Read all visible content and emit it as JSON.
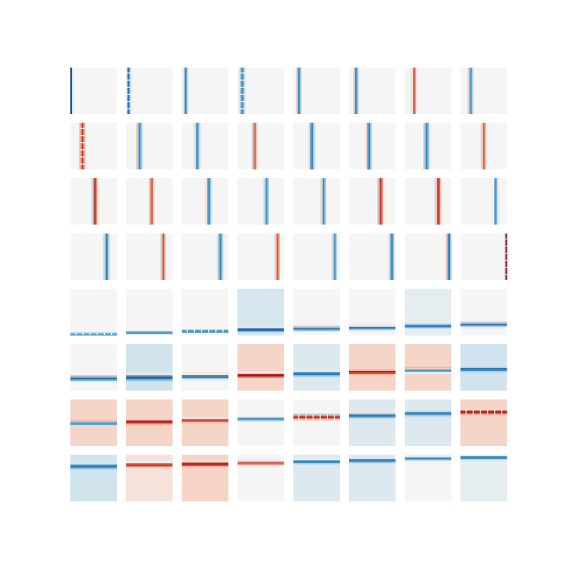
{
  "chart_data": {
    "type": "heatmap",
    "layout": {
      "rows": 8,
      "cols": 8
    },
    "colormap": "RdBu_r",
    "colors": {
      "neutral": "#f5f5f5",
      "negative_strong": "#08519c",
      "negative": "#4393c3",
      "positive": "#d6604d",
      "positive_strong": "#b2182b"
    },
    "panels": [
      {
        "orientation": "vertical",
        "pos": 0.02,
        "sign": -1,
        "amp": 1.0,
        "width": 0.025,
        "bg": 0.0,
        "striped": false
      },
      {
        "orientation": "vertical",
        "pos": 0.05,
        "sign": -1,
        "amp": 0.7,
        "width": 0.05,
        "bg": 0.0,
        "striped": true
      },
      {
        "orientation": "vertical",
        "pos": 0.08,
        "sign": -1,
        "amp": 0.6,
        "width": 0.05,
        "bg": 0.0,
        "striped": false
      },
      {
        "orientation": "vertical",
        "pos": 0.1,
        "sign": -1,
        "amp": 0.55,
        "width": 0.06,
        "bg": 0.0,
        "striped": true
      },
      {
        "orientation": "vertical",
        "pos": 0.12,
        "sign": -1,
        "amp": 0.6,
        "width": 0.05,
        "bg": 0.0,
        "striped": false
      },
      {
        "orientation": "vertical",
        "pos": 0.15,
        "sign": -1,
        "amp": 0.6,
        "width": 0.05,
        "bg": 0.0,
        "striped": false
      },
      {
        "orientation": "vertical",
        "pos": 0.2,
        "sign": 1,
        "amp": 0.55,
        "width": 0.05,
        "bg": 0.0,
        "striped": false
      },
      {
        "orientation": "vertical",
        "pos": 0.22,
        "sign": -1,
        "amp": 0.55,
        "width": 0.05,
        "bg": 0.0,
        "striped": false
      },
      {
        "orientation": "vertical",
        "pos": 0.26,
        "sign": 1,
        "amp": 0.65,
        "width": 0.06,
        "bg": 0.0,
        "striped": true
      },
      {
        "orientation": "vertical",
        "pos": 0.29,
        "sign": -1,
        "amp": 0.55,
        "width": 0.06,
        "bg": 0.0,
        "striped": false
      },
      {
        "orientation": "vertical",
        "pos": 0.33,
        "sign": -1,
        "amp": 0.55,
        "width": 0.06,
        "bg": 0.0,
        "striped": false
      },
      {
        "orientation": "vertical",
        "pos": 0.37,
        "sign": 1,
        "amp": 0.55,
        "width": 0.05,
        "bg": 0.0,
        "striped": false
      },
      {
        "orientation": "vertical",
        "pos": 0.4,
        "sign": -1,
        "amp": 0.6,
        "width": 0.06,
        "bg": 0.0,
        "striped": false
      },
      {
        "orientation": "vertical",
        "pos": 0.43,
        "sign": -1,
        "amp": 0.6,
        "width": 0.06,
        "bg": 0.0,
        "striped": false
      },
      {
        "orientation": "vertical",
        "pos": 0.47,
        "sign": -1,
        "amp": 0.6,
        "width": 0.06,
        "bg": 0.0,
        "striped": false
      },
      {
        "orientation": "vertical",
        "pos": 0.5,
        "sign": 1,
        "amp": 0.55,
        "width": 0.05,
        "bg": 0.0,
        "striped": false
      },
      {
        "orientation": "vertical",
        "pos": 0.53,
        "sign": 1,
        "amp": 0.65,
        "width": 0.06,
        "bg": 0.0,
        "striped": false
      },
      {
        "orientation": "vertical",
        "pos": 0.55,
        "sign": 1,
        "amp": 0.55,
        "width": 0.05,
        "bg": 0.0,
        "striped": false
      },
      {
        "orientation": "vertical",
        "pos": 0.58,
        "sign": -1,
        "amp": 0.55,
        "width": 0.06,
        "bg": 0.0,
        "striped": false
      },
      {
        "orientation": "vertical",
        "pos": 0.62,
        "sign": -1,
        "amp": 0.55,
        "width": 0.05,
        "bg": 0.0,
        "striped": false
      },
      {
        "orientation": "vertical",
        "pos": 0.65,
        "sign": -1,
        "amp": 0.55,
        "width": 0.05,
        "bg": 0.0,
        "striped": false
      },
      {
        "orientation": "vertical",
        "pos": 0.68,
        "sign": 1,
        "amp": 0.65,
        "width": 0.06,
        "bg": 0.0,
        "striped": false
      },
      {
        "orientation": "vertical",
        "pos": 0.72,
        "sign": 1,
        "amp": 0.7,
        "width": 0.06,
        "bg": 0.0,
        "striped": false
      },
      {
        "orientation": "vertical",
        "pos": 0.75,
        "sign": -1,
        "amp": 0.55,
        "width": 0.05,
        "bg": 0.0,
        "striped": false
      },
      {
        "orientation": "vertical",
        "pos": 0.78,
        "sign": -1,
        "amp": 0.6,
        "width": 0.06,
        "bg": 0.0,
        "striped": false
      },
      {
        "orientation": "vertical",
        "pos": 0.8,
        "sign": 1,
        "amp": 0.55,
        "width": 0.05,
        "bg": 0.0,
        "striped": false
      },
      {
        "orientation": "vertical",
        "pos": 0.83,
        "sign": -1,
        "amp": 0.55,
        "width": 0.06,
        "bg": 0.0,
        "striped": false
      },
      {
        "orientation": "vertical",
        "pos": 0.86,
        "sign": 1,
        "amp": 0.55,
        "width": 0.05,
        "bg": 0.0,
        "striped": false
      },
      {
        "orientation": "vertical",
        "pos": 0.89,
        "sign": -1,
        "amp": 0.5,
        "width": 0.05,
        "bg": 0.0,
        "striped": false
      },
      {
        "orientation": "vertical",
        "pos": 0.92,
        "sign": -1,
        "amp": 0.55,
        "width": 0.06,
        "bg": 0.0,
        "striped": false
      },
      {
        "orientation": "vertical",
        "pos": 0.95,
        "sign": -1,
        "amp": 0.7,
        "width": 0.05,
        "bg": 0.0,
        "striped": false
      },
      {
        "orientation": "vertical",
        "pos": 0.99,
        "sign": 1,
        "amp": 0.9,
        "width": 0.03,
        "bg": 0.0,
        "striped": true
      },
      {
        "orientation": "horizontal",
        "pos": 0.97,
        "sign": -1,
        "amp": 1.0,
        "width": 0.025,
        "bg": 0.0,
        "striped": true
      },
      {
        "orientation": "horizontal",
        "pos": 0.94,
        "sign": -1,
        "amp": 0.8,
        "width": 0.03,
        "bg": 0.0,
        "striped": false
      },
      {
        "orientation": "horizontal",
        "pos": 0.91,
        "sign": -1,
        "amp": 0.9,
        "width": 0.03,
        "bg": 0.0,
        "striped": true
      },
      {
        "orientation": "horizontal",
        "pos": 0.88,
        "sign": -1,
        "amp": 0.8,
        "width": 0.05,
        "bg": -0.08,
        "striped": false
      },
      {
        "orientation": "horizontal",
        "pos": 0.86,
        "sign": -1,
        "amp": 0.7,
        "width": 0.05,
        "bg": 0.0,
        "striped": false
      },
      {
        "orientation": "horizontal",
        "pos": 0.84,
        "sign": -1,
        "amp": 0.7,
        "width": 0.05,
        "bg": 0.0,
        "striped": false
      },
      {
        "orientation": "horizontal",
        "pos": 0.8,
        "sign": -1,
        "amp": 0.7,
        "width": 0.05,
        "bg": -0.04,
        "striped": false
      },
      {
        "orientation": "horizontal",
        "pos": 0.77,
        "sign": -1,
        "amp": 0.7,
        "width": 0.05,
        "bg": 0.0,
        "striped": false
      },
      {
        "orientation": "horizontal",
        "pos": 0.74,
        "sign": -1,
        "amp": 0.7,
        "width": 0.06,
        "bg": 0.0,
        "striped": false
      },
      {
        "orientation": "horizontal",
        "pos": 0.72,
        "sign": -1,
        "amp": 0.7,
        "width": 0.07,
        "bg": -0.09,
        "striped": false
      },
      {
        "orientation": "horizontal",
        "pos": 0.7,
        "sign": -1,
        "amp": 0.65,
        "width": 0.06,
        "bg": 0.0,
        "striped": false
      },
      {
        "orientation": "horizontal",
        "pos": 0.67,
        "sign": 1,
        "amp": 0.75,
        "width": 0.06,
        "bg": 0.1,
        "striped": false
      },
      {
        "orientation": "horizontal",
        "pos": 0.64,
        "sign": -1,
        "amp": 0.65,
        "width": 0.06,
        "bg": -0.06,
        "striped": false
      },
      {
        "orientation": "horizontal",
        "pos": 0.6,
        "sign": 1,
        "amp": 0.65,
        "width": 0.06,
        "bg": 0.1,
        "striped": false
      },
      {
        "orientation": "horizontal",
        "pos": 0.57,
        "sign": -1,
        "amp": 0.6,
        "width": 0.06,
        "bg": 0.1,
        "striped": false
      },
      {
        "orientation": "horizontal",
        "pos": 0.54,
        "sign": -1,
        "amp": 0.6,
        "width": 0.06,
        "bg": -0.09,
        "striped": false
      },
      {
        "orientation": "horizontal",
        "pos": 0.52,
        "sign": -1,
        "amp": 0.65,
        "width": 0.06,
        "bg": 0.1,
        "striped": false
      },
      {
        "orientation": "horizontal",
        "pos": 0.48,
        "sign": 1,
        "amp": 0.7,
        "width": 0.06,
        "bg": 0.1,
        "striped": false
      },
      {
        "orientation": "horizontal",
        "pos": 0.45,
        "sign": 1,
        "amp": 0.6,
        "width": 0.05,
        "bg": 0.1,
        "striped": false
      },
      {
        "orientation": "horizontal",
        "pos": 0.42,
        "sign": -1,
        "amp": 0.55,
        "width": 0.05,
        "bg": 0.0,
        "striped": false
      },
      {
        "orientation": "horizontal",
        "pos": 0.38,
        "sign": 1,
        "amp": 0.75,
        "width": 0.06,
        "bg": 0.0,
        "striped": true
      },
      {
        "orientation": "horizontal",
        "pos": 0.35,
        "sign": -1,
        "amp": 0.6,
        "width": 0.06,
        "bg": -0.06,
        "striped": false
      },
      {
        "orientation": "horizontal",
        "pos": 0.3,
        "sign": -1,
        "amp": 0.6,
        "width": 0.06,
        "bg": -0.06,
        "striped": false
      },
      {
        "orientation": "horizontal",
        "pos": 0.27,
        "sign": 1,
        "amp": 0.7,
        "width": 0.06,
        "bg": 0.1,
        "striped": true
      },
      {
        "orientation": "horizontal",
        "pos": 0.25,
        "sign": -1,
        "amp": 0.6,
        "width": 0.06,
        "bg": -0.09,
        "striped": false
      },
      {
        "orientation": "horizontal",
        "pos": 0.22,
        "sign": 1,
        "amp": 0.6,
        "width": 0.06,
        "bg": 0.06,
        "striped": false
      },
      {
        "orientation": "horizontal",
        "pos": 0.2,
        "sign": 1,
        "amp": 0.7,
        "width": 0.06,
        "bg": 0.1,
        "striped": false
      },
      {
        "orientation": "horizontal",
        "pos": 0.18,
        "sign": 1,
        "amp": 0.6,
        "width": 0.05,
        "bg": 0.0,
        "striped": false
      },
      {
        "orientation": "horizontal",
        "pos": 0.15,
        "sign": -1,
        "amp": 0.6,
        "width": 0.05,
        "bg": -0.06,
        "striped": false
      },
      {
        "orientation": "horizontal",
        "pos": 0.12,
        "sign": -1,
        "amp": 0.6,
        "width": 0.06,
        "bg": -0.06,
        "striped": false
      },
      {
        "orientation": "horizontal",
        "pos": 0.08,
        "sign": -1,
        "amp": 0.6,
        "width": 0.05,
        "bg": 0.0,
        "striped": false
      },
      {
        "orientation": "horizontal",
        "pos": 0.06,
        "sign": -1,
        "amp": 0.6,
        "width": 0.05,
        "bg": -0.04,
        "striped": false
      }
    ]
  }
}
